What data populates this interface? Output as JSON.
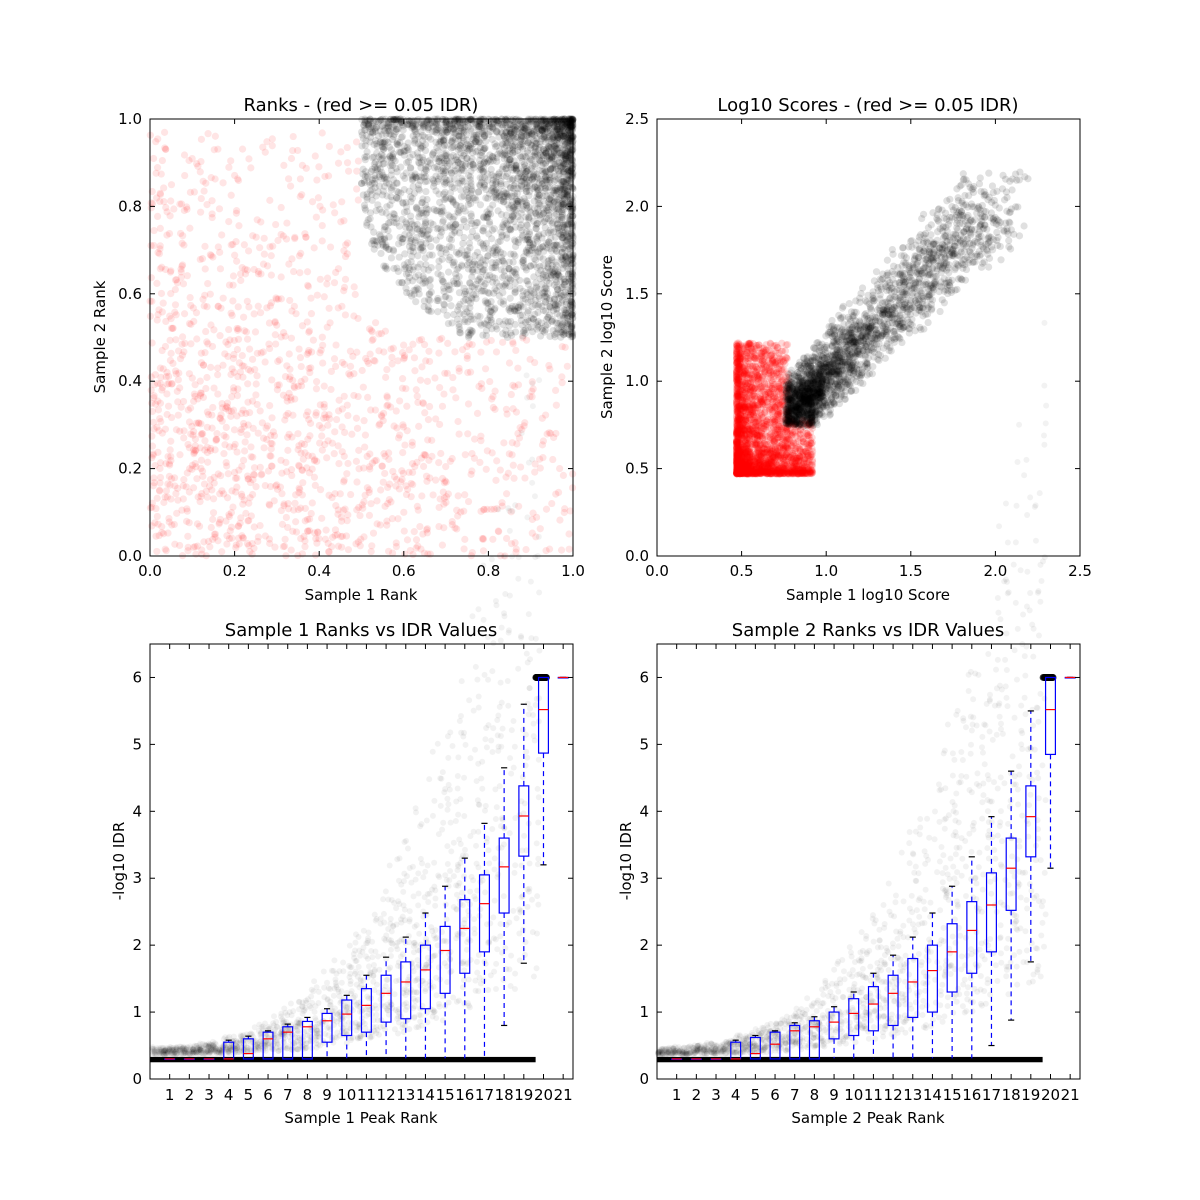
{
  "chart_data": [
    {
      "type": "scatter",
      "title": "Ranks - (red >= 0.05 IDR)",
      "xlabel": "Sample 1 Rank",
      "ylabel": "Sample 2 Rank",
      "xlim": [
        0.0,
        1.0
      ],
      "ylim": [
        0.0,
        1.0
      ],
      "xticks": [
        "0.0",
        "0.2",
        "0.4",
        "0.6",
        "0.8",
        "1.0"
      ],
      "yticks": [
        "0.0",
        "0.2",
        "0.4",
        "0.6",
        "0.8",
        "1.0"
      ],
      "colors": {
        "above": "#ff0000",
        "below": "#000000"
      },
      "regions": [
        {
          "color": "#000000",
          "description": "dense cluster in upper-right",
          "x_range": [
            0.5,
            1.0
          ],
          "y_range": [
            0.5,
            1.0
          ]
        },
        {
          "color": "#ff0000",
          "description": "diffuse scatter filling remaining area",
          "x_range": [
            0.0,
            1.0
          ],
          "y_range": [
            0.0,
            1.0
          ]
        }
      ]
    },
    {
      "type": "scatter",
      "title": "Log10 Scores - (red >= 0.05 IDR)",
      "xlabel": "Sample 1 log10 Score",
      "ylabel": "Sample 2 log10 Score",
      "xlim": [
        0.0,
        2.5
      ],
      "ylim": [
        0.0,
        2.5
      ],
      "xticks": [
        "0.0",
        "0.5",
        "1.0",
        "1.5",
        "2.0",
        "2.5"
      ],
      "yticks": [
        "0.0",
        "0.5",
        "1.0",
        "1.5",
        "2.0",
        "2.5"
      ],
      "colors": {
        "above": "#ff0000",
        "below": "#000000"
      },
      "regions": [
        {
          "color": "#ff0000",
          "description": "dense block near origin",
          "x_range": [
            0.47,
            0.95
          ],
          "y_range": [
            0.47,
            1.25
          ]
        },
        {
          "color": "#000000",
          "description": "diagonal cloud",
          "x_range": [
            0.75,
            2.05
          ],
          "y_range": [
            0.75,
            2.07
          ]
        }
      ]
    },
    {
      "type": "box",
      "title": "Sample 1 Ranks vs IDR Values",
      "xlabel": "Sample 1 Peak Rank",
      "ylabel": "-log10 IDR",
      "ylim": [
        0,
        6.5
      ],
      "yticks": [
        "0",
        "1",
        "2",
        "3",
        "4",
        "5",
        "6"
      ],
      "categories": [
        "1",
        "2",
        "3",
        "4",
        "5",
        "6",
        "7",
        "8",
        "9",
        "10",
        "11",
        "12",
        "13",
        "14",
        "15",
        "16",
        "17",
        "18",
        "19",
        "20",
        "21"
      ],
      "boxes": [
        {
          "q1": 0.3,
          "median": 0.3,
          "q3": 0.3,
          "whisker_low": 0.3,
          "whisker_high": 0.3
        },
        {
          "q1": 0.3,
          "median": 0.3,
          "q3": 0.3,
          "whisker_low": 0.3,
          "whisker_high": 0.3
        },
        {
          "q1": 0.3,
          "median": 0.3,
          "q3": 0.3,
          "whisker_low": 0.3,
          "whisker_high": 0.3
        },
        {
          "q1": 0.3,
          "median": 0.3,
          "q3": 0.55,
          "whisker_low": 0.3,
          "whisker_high": 0.58
        },
        {
          "q1": 0.3,
          "median": 0.38,
          "q3": 0.6,
          "whisker_low": 0.3,
          "whisker_high": 0.64
        },
        {
          "q1": 0.3,
          "median": 0.6,
          "q3": 0.7,
          "whisker_low": 0.3,
          "whisker_high": 0.72
        },
        {
          "q1": 0.3,
          "median": 0.7,
          "q3": 0.78,
          "whisker_low": 0.3,
          "whisker_high": 0.82
        },
        {
          "q1": 0.3,
          "median": 0.78,
          "q3": 0.86,
          "whisker_low": 0.3,
          "whisker_high": 0.92
        },
        {
          "q1": 0.55,
          "median": 0.87,
          "q3": 0.98,
          "whisker_low": 0.3,
          "whisker_high": 1.05
        },
        {
          "q1": 0.65,
          "median": 0.97,
          "q3": 1.18,
          "whisker_low": 0.3,
          "whisker_high": 1.25
        },
        {
          "q1": 0.7,
          "median": 1.1,
          "q3": 1.35,
          "whisker_low": 0.3,
          "whisker_high": 1.55
        },
        {
          "q1": 0.85,
          "median": 1.28,
          "q3": 1.55,
          "whisker_low": 0.3,
          "whisker_high": 1.82
        },
        {
          "q1": 0.9,
          "median": 1.45,
          "q3": 1.75,
          "whisker_low": 0.3,
          "whisker_high": 2.12
        },
        {
          "q1": 1.05,
          "median": 1.63,
          "q3": 2.0,
          "whisker_low": 0.3,
          "whisker_high": 2.48
        },
        {
          "q1": 1.28,
          "median": 1.92,
          "q3": 2.28,
          "whisker_low": 0.3,
          "whisker_high": 2.88
        },
        {
          "q1": 1.58,
          "median": 2.25,
          "q3": 2.68,
          "whisker_low": 0.3,
          "whisker_high": 3.3
        },
        {
          "q1": 1.9,
          "median": 2.62,
          "q3": 3.05,
          "whisker_low": 0.3,
          "whisker_high": 3.82
        },
        {
          "q1": 2.48,
          "median": 3.17,
          "q3": 3.6,
          "whisker_low": 0.8,
          "whisker_high": 4.65
        },
        {
          "q1": 3.33,
          "median": 3.93,
          "q3": 4.38,
          "whisker_low": 1.73,
          "whisker_high": 5.6
        },
        {
          "q1": 4.87,
          "median": 5.52,
          "q3": 6.0,
          "whisker_low": 3.2,
          "whisker_high": 6.0
        },
        {
          "q1": 6.0,
          "median": 6.0,
          "q3": 6.0,
          "whisker_low": 6.0,
          "whisker_high": 6.0
        }
      ],
      "colors": {
        "box": "#0000ff",
        "median": "#ff0000",
        "points": "#000000"
      }
    },
    {
      "type": "box",
      "title": "Sample 2 Ranks vs IDR Values",
      "xlabel": "Sample 2 Peak Rank",
      "ylabel": "-log10 IDR",
      "ylim": [
        0,
        6.5
      ],
      "yticks": [
        "0",
        "1",
        "2",
        "3",
        "4",
        "5",
        "6"
      ],
      "categories": [
        "1",
        "2",
        "3",
        "4",
        "5",
        "6",
        "7",
        "8",
        "9",
        "10",
        "11",
        "12",
        "13",
        "14",
        "15",
        "16",
        "17",
        "18",
        "19",
        "20",
        "21"
      ],
      "boxes": [
        {
          "q1": 0.3,
          "median": 0.3,
          "q3": 0.3,
          "whisker_low": 0.3,
          "whisker_high": 0.3
        },
        {
          "q1": 0.3,
          "median": 0.3,
          "q3": 0.3,
          "whisker_low": 0.3,
          "whisker_high": 0.3
        },
        {
          "q1": 0.3,
          "median": 0.3,
          "q3": 0.3,
          "whisker_low": 0.3,
          "whisker_high": 0.3
        },
        {
          "q1": 0.3,
          "median": 0.3,
          "q3": 0.55,
          "whisker_low": 0.3,
          "whisker_high": 0.58
        },
        {
          "q1": 0.3,
          "median": 0.38,
          "q3": 0.62,
          "whisker_low": 0.3,
          "whisker_high": 0.65
        },
        {
          "q1": 0.3,
          "median": 0.52,
          "q3": 0.7,
          "whisker_low": 0.3,
          "whisker_high": 0.72
        },
        {
          "q1": 0.3,
          "median": 0.72,
          "q3": 0.8,
          "whisker_low": 0.3,
          "whisker_high": 0.84
        },
        {
          "q1": 0.3,
          "median": 0.78,
          "q3": 0.87,
          "whisker_low": 0.3,
          "whisker_high": 0.93
        },
        {
          "q1": 0.6,
          "median": 0.85,
          "q3": 1.0,
          "whisker_low": 0.3,
          "whisker_high": 1.08
        },
        {
          "q1": 0.65,
          "median": 0.98,
          "q3": 1.2,
          "whisker_low": 0.3,
          "whisker_high": 1.3
        },
        {
          "q1": 0.72,
          "median": 1.12,
          "q3": 1.38,
          "whisker_low": 0.3,
          "whisker_high": 1.58
        },
        {
          "q1": 0.8,
          "median": 1.28,
          "q3": 1.55,
          "whisker_low": 0.3,
          "whisker_high": 1.85
        },
        {
          "q1": 0.92,
          "median": 1.45,
          "q3": 1.8,
          "whisker_low": 0.3,
          "whisker_high": 2.12
        },
        {
          "q1": 1.0,
          "median": 1.62,
          "q3": 2.0,
          "whisker_low": 0.3,
          "whisker_high": 2.48
        },
        {
          "q1": 1.3,
          "median": 1.9,
          "q3": 2.32,
          "whisker_low": 0.3,
          "whisker_high": 2.88
        },
        {
          "q1": 1.58,
          "median": 2.22,
          "q3": 2.65,
          "whisker_low": 0.3,
          "whisker_high": 3.32
        },
        {
          "q1": 1.9,
          "median": 2.6,
          "q3": 3.08,
          "whisker_low": 0.5,
          "whisker_high": 3.92
        },
        {
          "q1": 2.52,
          "median": 3.15,
          "q3": 3.6,
          "whisker_low": 0.88,
          "whisker_high": 4.6
        },
        {
          "q1": 3.32,
          "median": 3.92,
          "q3": 4.38,
          "whisker_low": 1.75,
          "whisker_high": 5.5
        },
        {
          "q1": 4.85,
          "median": 5.52,
          "q3": 6.0,
          "whisker_low": 3.15,
          "whisker_high": 6.0
        },
        {
          "q1": 6.0,
          "median": 6.0,
          "q3": 6.0,
          "whisker_low": 6.0,
          "whisker_high": 6.0
        }
      ],
      "colors": {
        "box": "#0000ff",
        "median": "#ff0000",
        "points": "#000000"
      }
    }
  ]
}
